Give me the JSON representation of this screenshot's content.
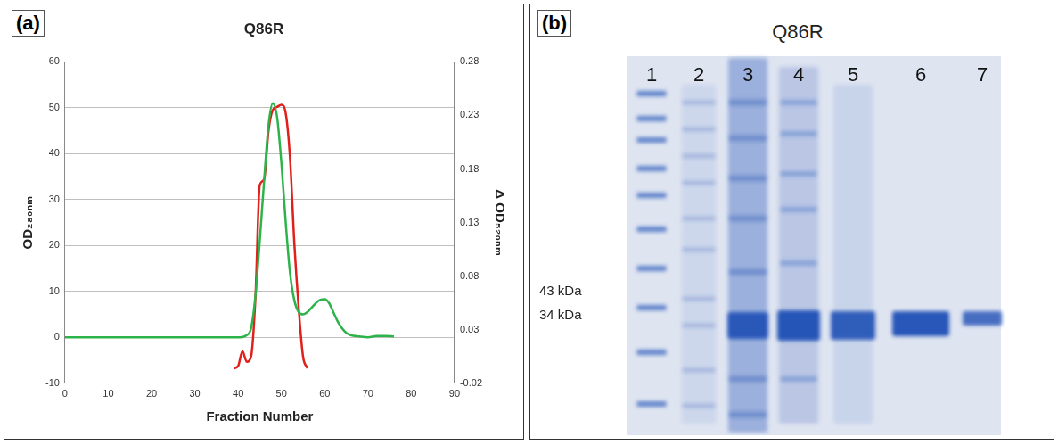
{
  "chart_data": {
    "type": "line",
    "panel_label": "(a)",
    "title": "Q86R",
    "x_label": "Fraction Number",
    "y_label": "OD₂₈₀ₙₘ",
    "y2_label": "Δ OD₅₂₀ₙₘ",
    "xlim": [
      0,
      90
    ],
    "xticks": [
      0,
      10,
      20,
      30,
      40,
      50,
      60,
      70,
      80,
      90
    ],
    "ylim": [
      -10,
      60
    ],
    "yticks": [
      -10,
      0,
      10,
      20,
      30,
      40,
      50,
      60
    ],
    "y2lim": [
      -0.02,
      0.28
    ],
    "y2ticks": [
      -0.02,
      0.03,
      0.08,
      0.13,
      0.18,
      0.23,
      0.28
    ],
    "grid": true,
    "series": [
      {
        "color": "#2db34a",
        "axis": "y",
        "x": [
          0,
          10,
          20,
          30,
          40,
          42,
          43,
          44,
          45,
          46,
          47,
          48,
          49,
          50,
          51,
          52,
          53,
          54,
          55,
          56,
          57,
          58,
          59,
          60,
          61,
          62,
          63,
          64,
          65,
          66,
          68,
          70,
          72,
          74,
          76
        ],
        "values": [
          0,
          0,
          0,
          0,
          0,
          0.5,
          2,
          9,
          21,
          34,
          46,
          51,
          48,
          38,
          25,
          14,
          8,
          5.5,
          5,
          5.5,
          6.5,
          7.5,
          8.2,
          8.3,
          7.5,
          5.5,
          3.5,
          2,
          1,
          0.5,
          0.2,
          0,
          0.3,
          0.3,
          0.2
        ]
      },
      {
        "color": "#e0201b",
        "axis": "y2",
        "x": [
          39,
          40,
          41,
          42,
          43,
          44,
          45,
          46,
          47,
          48,
          49,
          50,
          51,
          52,
          53,
          54,
          55,
          56
        ],
        "values": [
          -0.006,
          -0.004,
          0.01,
          0.0,
          0.005,
          0.06,
          0.165,
          0.17,
          0.215,
          0.235,
          0.238,
          0.24,
          0.232,
          0.19,
          0.11,
          0.05,
          0.005,
          -0.006
        ]
      }
    ]
  },
  "gel": {
    "panel_label": "(b)",
    "title": "Q86R",
    "lane_labels": [
      "1",
      "2",
      "3",
      "4",
      "5",
      "6",
      "7"
    ],
    "marker_labels": [
      "43 kDa",
      "34 kDa"
    ]
  }
}
